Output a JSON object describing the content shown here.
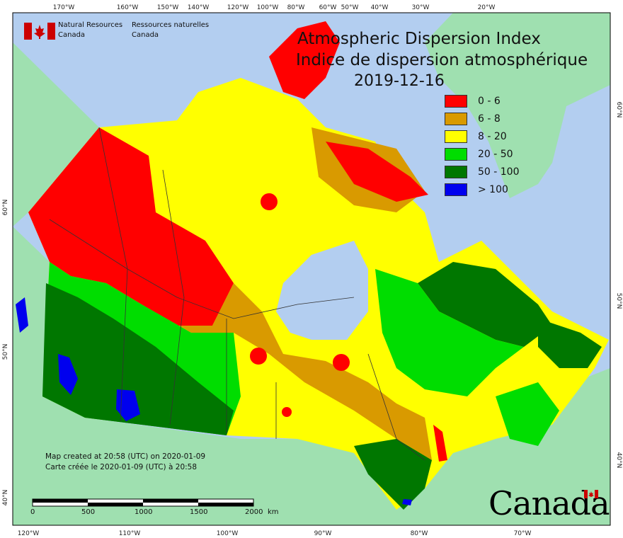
{
  "title_en": "Atmospheric Dispersion Index",
  "title_fr": "Indice de dispersion atmosphérique",
  "date": "2019-12-16",
  "agency": {
    "en_line1": "Natural Resources",
    "en_line2": "Canada",
    "fr_line1": "Ressources naturelles",
    "fr_line2": "Canada"
  },
  "wordmark": "Canada",
  "credit": {
    "line1": "Map created at 20:58 (UTC) on 2020-01-09",
    "line2": "Carte créée le 2020-01-09 (UTC) à 20:58"
  },
  "legend": [
    {
      "label": "0 - 6",
      "color": "#ff0000"
    },
    {
      "label": "6 - 8",
      "color": "#d99a00"
    },
    {
      "label": "8 - 20",
      "color": "#ffff00"
    },
    {
      "label": "20 - 50",
      "color": "#00dd00"
    },
    {
      "label": "50 - 100",
      "color": "#007700"
    },
    {
      "label": "> 100",
      "color": "#0000ee"
    }
  ],
  "top_ticks": [
    "170°W",
    "160°W",
    "150°W",
    "140°W",
    "120°W",
    "100°W",
    "80°W",
    "60°W",
    "50°W",
    "40°W",
    "30°W",
    "20°W"
  ],
  "bottom_ticks": [
    "120°W",
    "110°W",
    "100°W",
    "90°W",
    "80°W",
    "70°W"
  ],
  "left_ticks": [
    "60°N",
    "50°N",
    "40°N"
  ],
  "right_ticks": [
    "60°N",
    "50°N",
    "40°N"
  ],
  "scale": {
    "labels": [
      "0",
      "500",
      "1000",
      "1500",
      "2000"
    ],
    "unit": "km"
  },
  "colors": {
    "ocean": "#b3cef0",
    "land": "#9fe0b0"
  }
}
